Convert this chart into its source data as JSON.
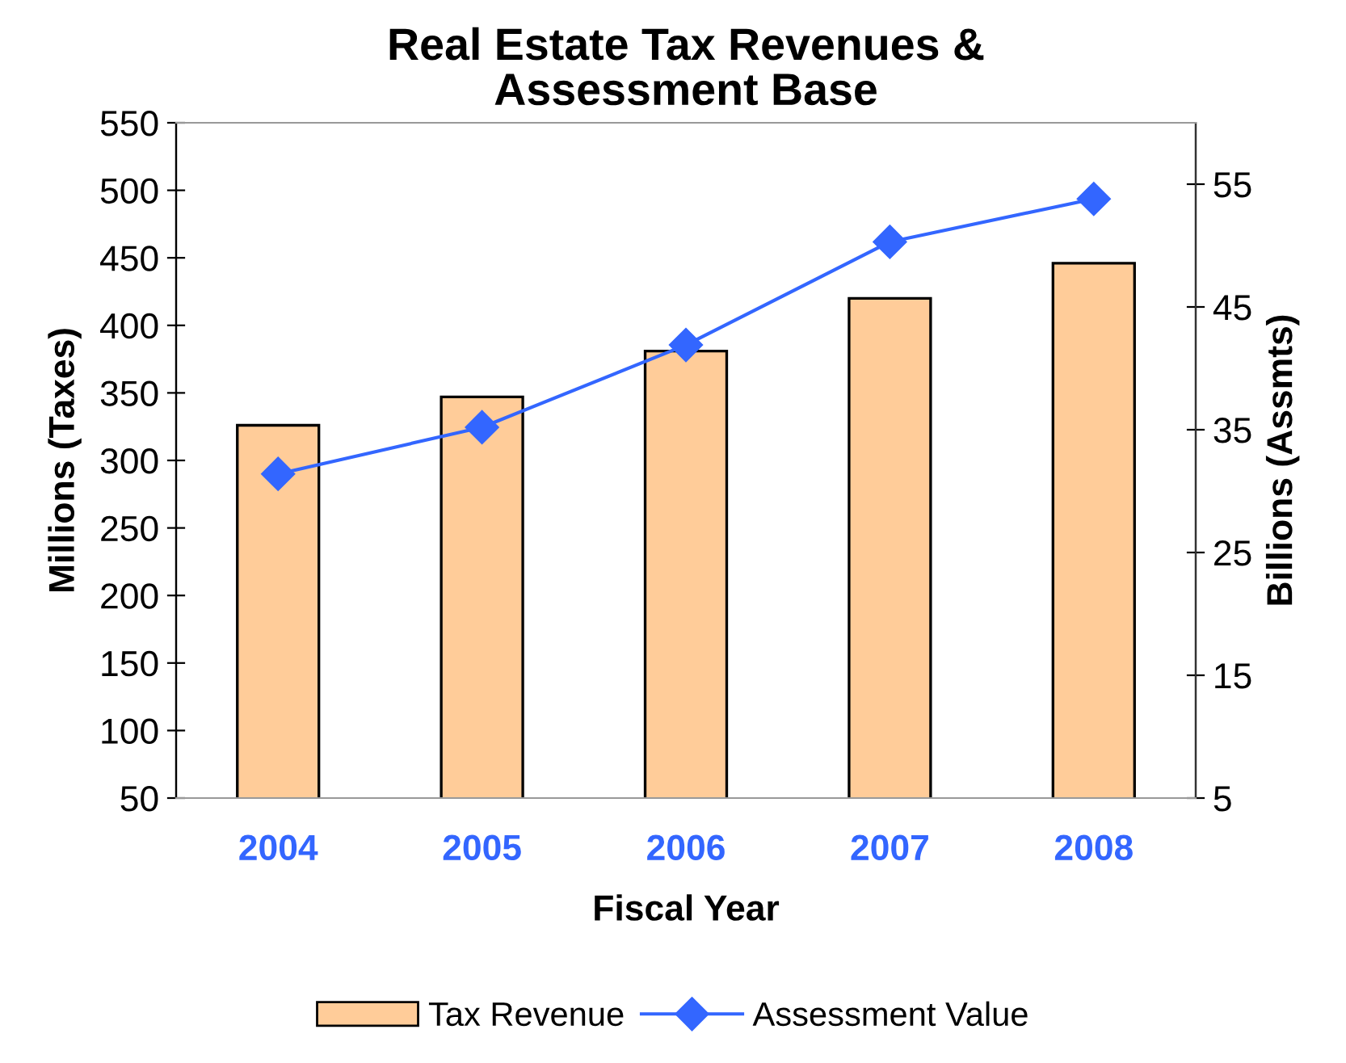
{
  "chart_data": {
    "type": "bar",
    "title": "Real Estate Tax Revenues &\nAssessment Base",
    "xlabel": "Fiscal Year",
    "ylabel": "Millions (Taxes)",
    "y2label": "Billions (Assmts)",
    "categories": [
      "2004",
      "2005",
      "2006",
      "2007",
      "2008"
    ],
    "series": [
      {
        "name": "Tax Revenue",
        "color": "#ffcc99",
        "values": [
          326,
          347,
          381,
          420,
          446
        ]
      },
      {
        "name": "Assessment Value",
        "type": "line",
        "axis": "y2",
        "color": "#3366ff",
        "marker": "diamond",
        "line_style": "solid",
        "values": [
          31.4,
          35.2,
          41.9,
          50.3,
          53.8
        ]
      }
    ],
    "ylim": [
      50,
      550
    ],
    "yticks": [
      50,
      100,
      150,
      200,
      250,
      300,
      350,
      400,
      450,
      500,
      550
    ],
    "y2lim": [
      5,
      60
    ],
    "y2ticks": [
      5,
      15,
      25,
      35,
      45,
      55
    ],
    "grid": false,
    "legend": "bottom"
  }
}
